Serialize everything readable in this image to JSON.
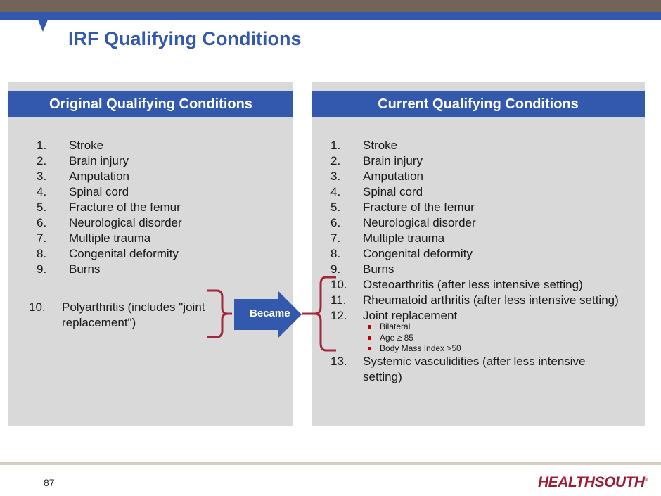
{
  "title": "IRF Qualifying Conditions",
  "original": {
    "header": "Original Qualifying Conditions",
    "items": [
      {
        "num": "1.",
        "text": "Stroke"
      },
      {
        "num": "2.",
        "text": "Brain injury"
      },
      {
        "num": "3.",
        "text": "Amputation"
      },
      {
        "num": "4.",
        "text": "Spinal cord"
      },
      {
        "num": "5.",
        "text": "Fracture of the femur"
      },
      {
        "num": "6.",
        "text": "Neurological disorder"
      },
      {
        "num": "7.",
        "text": "Multiple trauma"
      },
      {
        "num": "8.",
        "text": "Congenital deformity"
      },
      {
        "num": "9.",
        "text": "Burns"
      }
    ],
    "item10": {
      "num": "10.",
      "line1": "Polyarthritis (includes \"joint",
      "line2": "replacement\")"
    }
  },
  "arrow_label": "Became",
  "current": {
    "header": "Current Qualifying Conditions",
    "items": [
      {
        "num": "1.",
        "text": "Stroke"
      },
      {
        "num": "2.",
        "text": "Brain injury"
      },
      {
        "num": "3.",
        "text": "Amputation"
      },
      {
        "num": "4.",
        "text": "Spinal cord"
      },
      {
        "num": "5.",
        "text": "Fracture of the femur"
      },
      {
        "num": "6.",
        "text": "Neurological disorder"
      },
      {
        "num": "7.",
        "text": "Multiple trauma"
      },
      {
        "num": "8.",
        "text": "Congenital deformity"
      },
      {
        "num": "9.",
        "text": "Burns"
      },
      {
        "num": "10.",
        "text": "Osteoarthritis (after less intensive setting)"
      },
      {
        "num": "11.",
        "text": "Rheumatoid arthritis (after less intensive setting)"
      },
      {
        "num": "12.",
        "text": "Joint replacement"
      }
    ],
    "subitems": [
      "Bilateral",
      "Age ≥ 85",
      "Body Mass Index >50"
    ],
    "item13": {
      "num": "13.",
      "line1": "Systemic vasculidities (after less intensive",
      "line2": "setting)"
    }
  },
  "footer": {
    "page": "87",
    "logo": "HEALTHSOUTH"
  },
  "colors": {
    "brand_blue": "#3259ad",
    "top_bar": "#746359",
    "bracket": "#a3263f",
    "logo": "#9e1b32"
  }
}
